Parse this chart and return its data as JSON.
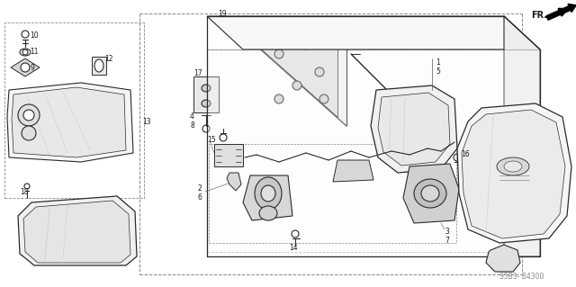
{
  "bg_color": "#ffffff",
  "line_color": "#2a2a2a",
  "text_color": "#1a1a1a",
  "watermark": "S5B3- B4300",
  "fr_label": "FR.",
  "fig_w": 6.4,
  "fig_h": 3.19,
  "dpi": 100
}
